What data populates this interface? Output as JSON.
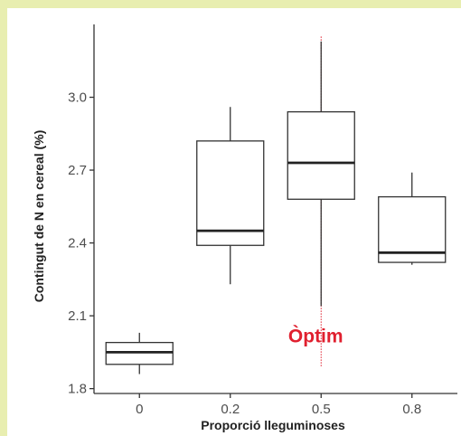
{
  "chart_data": {
    "type": "box",
    "xlabel": "Proporció lleguminoses",
    "ylabel": "Contingut de N en cereal (%)",
    "categories": [
      "0",
      "0.2",
      "0.5",
      "0.8"
    ],
    "yticks": [
      1.8,
      2.1,
      2.4,
      2.7,
      3.0
    ],
    "ytick_labels": [
      "1.8",
      "2.1",
      "2.4",
      "2.7",
      "3.0"
    ],
    "ylim": [
      1.78,
      3.3
    ],
    "boxes": [
      {
        "category": "0",
        "whisker_low": 1.86,
        "q1": 1.9,
        "median": 1.95,
        "q3": 1.99,
        "whisker_high": 2.03
      },
      {
        "category": "0.2",
        "whisker_low": 2.23,
        "q1": 2.39,
        "median": 2.45,
        "q3": 2.82,
        "whisker_high": 2.96
      },
      {
        "category": "0.5",
        "whisker_low": 2.14,
        "q1": 2.58,
        "median": 2.73,
        "q3": 2.94,
        "whisker_high": 3.23
      },
      {
        "category": "0.8",
        "whisker_low": 2.31,
        "q1": 2.32,
        "median": 2.36,
        "q3": 2.59,
        "whisker_high": 2.69
      }
    ],
    "grid": false,
    "reference_line": {
      "category": "0.5",
      "color": "#e0202f",
      "style": "dotted",
      "y_from": 1.89,
      "y_to": 3.25
    },
    "annotation": {
      "text": "Òptim",
      "color": "#e0202f",
      "category": "0.5",
      "y": 2.02
    }
  }
}
